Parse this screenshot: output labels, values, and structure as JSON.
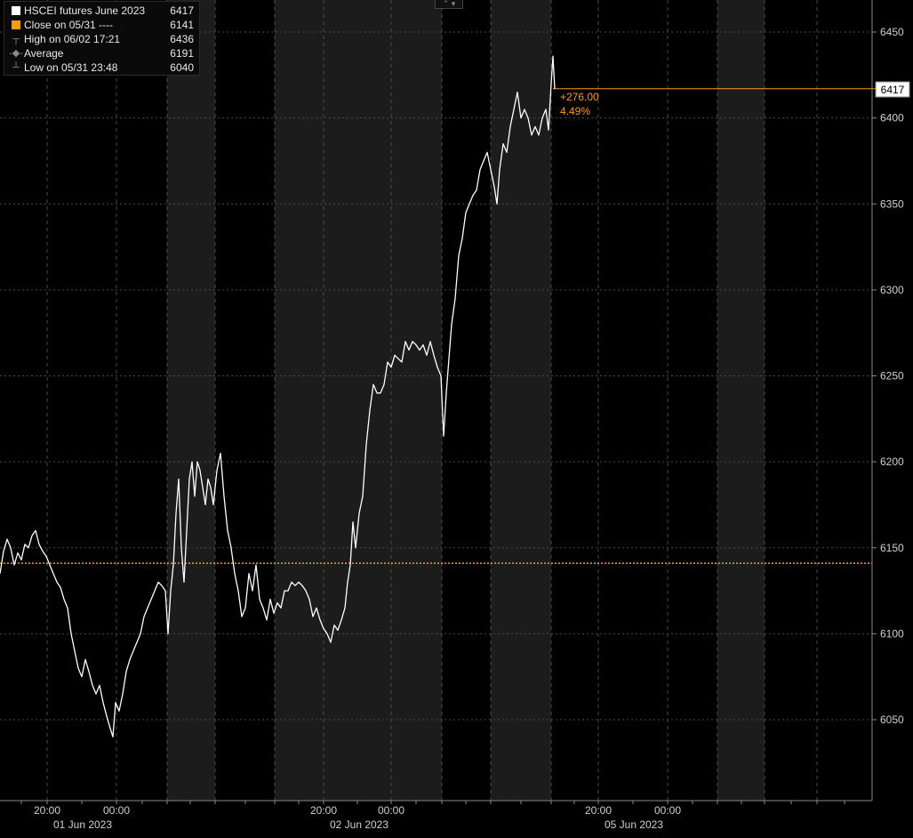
{
  "legend": {
    "items": [
      {
        "label": "HSCEI futures June 2023",
        "value": "6417",
        "symbol": "white-square-icon"
      },
      {
        "label": "Close on 05/31 ----",
        "value": "6141",
        "symbol": "orange-square-icon"
      },
      {
        "label": "High on 06/02 17:21",
        "value": "6436",
        "symbol": "high-marker-icon"
      },
      {
        "label": "Average",
        "value": "6191",
        "symbol": "average-marker-icon"
      },
      {
        "label": "Low on 05/31 23:48",
        "value": "6040",
        "symbol": "low-marker-icon"
      }
    ]
  },
  "annotations": {
    "change_abs": "+276.00",
    "change_pct": "4.49%",
    "last_price_label": "6417"
  },
  "colors": {
    "background": "#000000",
    "shaded_session": "#1c1c1c",
    "line": "#ffffff",
    "reference": "#f39c12",
    "grid": "#4a4a4a",
    "axis_text": "#cfcfcf",
    "annotation": "#f39c12"
  },
  "chart_data": {
    "type": "line",
    "title": "",
    "xlabel": "",
    "ylabel": "",
    "ylim": [
      6000,
      6470
    ],
    "y_ticks": [
      6050,
      6100,
      6150,
      6200,
      6250,
      6300,
      6350,
      6400,
      6450
    ],
    "y_axis_position": "right",
    "grid": true,
    "reference_line": {
      "label": "Close on 05/31",
      "value": 6141
    },
    "last_value": 6417,
    "x_tick_labels": [
      {
        "time": "20:00",
        "date": "01 Jun 2023"
      },
      {
        "time": "00:00",
        "date": ""
      },
      {
        "time": "20:00",
        "date": "02 Jun 2023"
      },
      {
        "time": "00:00",
        "date": ""
      },
      {
        "time": "20:00",
        "date": "05 Jun 2023"
      },
      {
        "time": "00:00",
        "date": ""
      }
    ],
    "shaded_sessions": [
      1,
      3,
      5,
      7
    ],
    "series": [
      {
        "points": [
          [
            0,
            6135
          ],
          [
            4,
            6148
          ],
          [
            8,
            6155
          ],
          [
            12,
            6150
          ],
          [
            16,
            6140
          ],
          [
            20,
            6147
          ],
          [
            24,
            6143
          ],
          [
            28,
            6152
          ],
          [
            32,
            6150
          ],
          [
            36,
            6157
          ],
          [
            40,
            6160
          ],
          [
            44,
            6152
          ],
          [
            48,
            6148
          ],
          [
            52,
            6145
          ],
          [
            56,
            6140
          ],
          [
            60,
            6135
          ],
          [
            64,
            6130
          ],
          [
            68,
            6127
          ],
          [
            72,
            6120
          ],
          [
            76,
            6115
          ],
          [
            80,
            6100
          ],
          [
            84,
            6090
          ],
          [
            88,
            6080
          ],
          [
            92,
            6075
          ],
          [
            96,
            6085
          ],
          [
            100,
            6078
          ],
          [
            104,
            6070
          ],
          [
            108,
            6065
          ],
          [
            112,
            6070
          ],
          [
            116,
            6060
          ],
          [
            120,
            6052
          ],
          [
            124,
            6045
          ],
          [
            127,
            6040
          ],
          [
            130,
            6060
          ],
          [
            134,
            6055
          ],
          [
            138,
            6065
          ],
          [
            142,
            6078
          ],
          [
            146,
            6085
          ],
          [
            150,
            6090
          ],
          [
            154,
            6095
          ],
          [
            158,
            6100
          ],
          [
            162,
            6110
          ],
          [
            166,
            6115
          ],
          [
            170,
            6120
          ],
          [
            174,
            6125
          ],
          [
            178,
            6130
          ],
          [
            182,
            6128
          ],
          [
            186,
            6125
          ],
          [
            189,
            6100
          ],
          [
            192,
            6125
          ],
          [
            195,
            6140
          ],
          [
            198,
            6170
          ],
          [
            201,
            6190
          ],
          [
            204,
            6150
          ],
          [
            207,
            6130
          ],
          [
            210,
            6160
          ],
          [
            213,
            6190
          ],
          [
            216,
            6200
          ],
          [
            219,
            6180
          ],
          [
            222,
            6200
          ],
          [
            225,
            6195
          ],
          [
            228,
            6185
          ],
          [
            231,
            6175
          ],
          [
            234,
            6190
          ],
          [
            237,
            6185
          ],
          [
            240,
            6175
          ],
          [
            244,
            6195
          ],
          [
            248,
            6205
          ],
          [
            252,
            6180
          ],
          [
            256,
            6160
          ],
          [
            260,
            6150
          ],
          [
            264,
            6135
          ],
          [
            268,
            6125
          ],
          [
            272,
            6110
          ],
          [
            276,
            6115
          ],
          [
            280,
            6135
          ],
          [
            284,
            6125
          ],
          [
            288,
            6140
          ],
          [
            292,
            6120
          ],
          [
            296,
            6115
          ],
          [
            300,
            6108
          ],
          [
            304,
            6120
          ],
          [
            308,
            6112
          ],
          [
            312,
            6118
          ],
          [
            316,
            6115
          ],
          [
            320,
            6125
          ],
          [
            324,
            6125
          ],
          [
            328,
            6130
          ],
          [
            332,
            6128
          ],
          [
            336,
            6130
          ],
          [
            340,
            6128
          ],
          [
            344,
            6125
          ],
          [
            348,
            6120
          ],
          [
            352,
            6110
          ],
          [
            356,
            6115
          ],
          [
            360,
            6108
          ],
          [
            364,
            6103
          ],
          [
            368,
            6100
          ],
          [
            372,
            6095
          ],
          [
            376,
            6105
          ],
          [
            380,
            6102
          ],
          [
            384,
            6108
          ],
          [
            388,
            6115
          ],
          [
            391,
            6130
          ],
          [
            394,
            6140
          ],
          [
            397,
            6165
          ],
          [
            400,
            6150
          ],
          [
            404,
            6170
          ],
          [
            408,
            6180
          ],
          [
            412,
            6210
          ],
          [
            416,
            6230
          ],
          [
            420,
            6245
          ],
          [
            424,
            6240
          ],
          [
            428,
            6240
          ],
          [
            432,
            6245
          ],
          [
            436,
            6258
          ],
          [
            440,
            6255
          ],
          [
            444,
            6262
          ],
          [
            448,
            6260
          ],
          [
            452,
            6258
          ],
          [
            456,
            6270
          ],
          [
            460,
            6265
          ],
          [
            464,
            6270
          ],
          [
            468,
            6268
          ],
          [
            472,
            6265
          ],
          [
            476,
            6268
          ],
          [
            480,
            6262
          ],
          [
            484,
            6270
          ],
          [
            488,
            6262
          ],
          [
            492,
            6255
          ],
          [
            496,
            6250
          ],
          [
            499,
            6215
          ],
          [
            502,
            6240
          ],
          [
            505,
            6260
          ],
          [
            508,
            6280
          ],
          [
            512,
            6295
          ],
          [
            516,
            6320
          ],
          [
            520,
            6330
          ],
          [
            524,
            6345
          ],
          [
            528,
            6350
          ],
          [
            532,
            6355
          ],
          [
            536,
            6358
          ],
          [
            540,
            6370
          ],
          [
            544,
            6375
          ],
          [
            548,
            6380
          ],
          [
            552,
            6370
          ],
          [
            556,
            6360
          ],
          [
            559,
            6350
          ],
          [
            562,
            6370
          ],
          [
            566,
            6385
          ],
          [
            570,
            6380
          ],
          [
            574,
            6395
          ],
          [
            578,
            6405
          ],
          [
            582,
            6415
          ],
          [
            586,
            6400
          ],
          [
            590,
            6405
          ],
          [
            594,
            6400
          ],
          [
            598,
            6390
          ],
          [
            602,
            6395
          ],
          [
            606,
            6390
          ],
          [
            610,
            6400
          ],
          [
            614,
            6405
          ],
          [
            617,
            6393
          ],
          [
            620,
            6420
          ],
          [
            622,
            6436
          ],
          [
            624,
            6417
          ]
        ]
      }
    ]
  }
}
